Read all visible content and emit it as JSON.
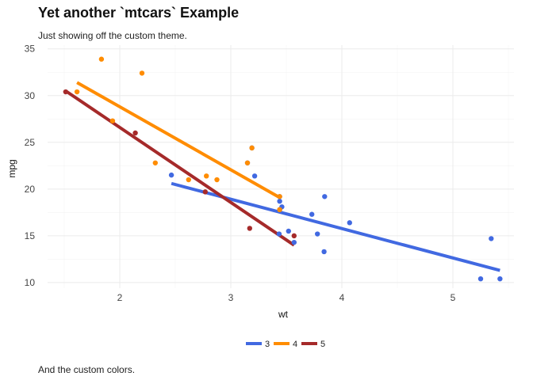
{
  "chart_data": {
    "type": "scatter",
    "title": "Yet another `mtcars` Example",
    "subtitle": "Just showing off the custom theme.",
    "caption": "And the custom colors.",
    "xlabel": "wt",
    "ylabel": "mpg",
    "xlim": [
      1.35,
      5.55
    ],
    "ylim": [
      9.4,
      35.4
    ],
    "xticks": [
      2,
      3,
      4,
      5
    ],
    "yticks": [
      10,
      15,
      20,
      25,
      30,
      35
    ],
    "grid": true,
    "legend": {
      "position": "bottom",
      "labels": [
        "3",
        "4",
        "5"
      ]
    },
    "series": [
      {
        "name": "3",
        "color": "#4169E1",
        "points": [
          [
            2.465,
            21.5
          ],
          [
            3.215,
            21.4
          ],
          [
            3.44,
            18.7
          ],
          [
            3.46,
            18.1
          ],
          [
            3.57,
            14.3
          ],
          [
            3.19,
            24.4
          ],
          [
            3.15,
            22.8
          ],
          [
            3.44,
            19.2
          ],
          [
            3.44,
            17.8
          ],
          [
            4.07,
            16.4
          ],
          [
            3.73,
            17.3
          ],
          [
            3.78,
            15.2
          ],
          [
            5.25,
            10.4
          ],
          [
            5.424,
            10.4
          ],
          [
            5.345,
            14.7
          ],
          [
            3.52,
            15.5
          ],
          [
            3.435,
            15.2
          ],
          [
            3.84,
            13.3
          ],
          [
            3.845,
            19.2
          ]
        ],
        "fit": [
          [
            2.465,
            20.6
          ],
          [
            5.424,
            11.3
          ]
        ]
      },
      {
        "name": "4",
        "color": "#FF8C00",
        "points": [
          [
            2.62,
            21.0
          ],
          [
            2.875,
            21.0
          ],
          [
            2.32,
            22.8
          ],
          [
            3.19,
            24.4
          ],
          [
            3.15,
            22.8
          ],
          [
            2.2,
            32.4
          ],
          [
            1.615,
            30.4
          ],
          [
            1.835,
            33.9
          ],
          [
            1.935,
            27.3
          ],
          [
            2.78,
            21.4
          ],
          [
            3.44,
            19.2
          ],
          [
            3.44,
            17.8
          ]
        ],
        "fit": [
          [
            1.615,
            31.4
          ],
          [
            3.44,
            19.1
          ]
        ]
      },
      {
        "name": "5",
        "color": "#A52A2A",
        "points": [
          [
            2.14,
            26.0
          ],
          [
            1.513,
            30.4
          ],
          [
            3.17,
            15.8
          ],
          [
            2.77,
            19.7
          ],
          [
            3.57,
            15.0
          ]
        ],
        "fit": [
          [
            1.513,
            30.5
          ],
          [
            3.57,
            14.0
          ]
        ]
      }
    ]
  }
}
